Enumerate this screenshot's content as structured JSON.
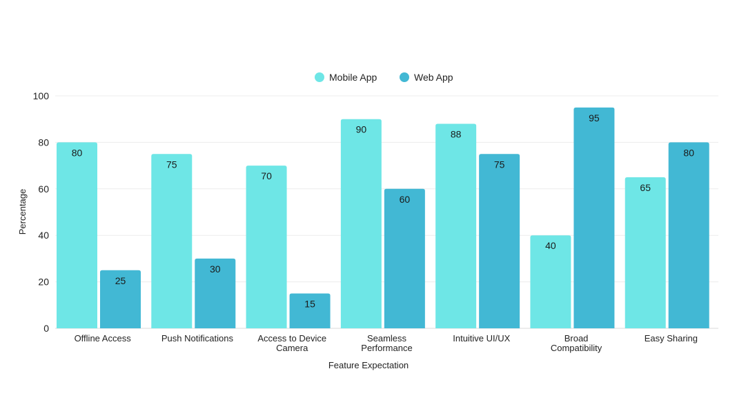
{
  "chart_data": {
    "type": "bar",
    "categories": [
      [
        "Offline Access"
      ],
      [
        "Push Notifications"
      ],
      [
        "Access to Device",
        "Camera"
      ],
      [
        "Seamless",
        "Performance"
      ],
      [
        "Intuitive UI/UX"
      ],
      [
        "Broad",
        "Compatibility"
      ],
      [
        "Easy Sharing"
      ]
    ],
    "series": [
      {
        "name": "Mobile App",
        "values": [
          80,
          75,
          70,
          90,
          88,
          40,
          65
        ],
        "color": "#6ee6e6"
      },
      {
        "name": "Web App",
        "values": [
          25,
          30,
          15,
          60,
          75,
          95,
          80
        ],
        "color": "#42b8d4"
      }
    ],
    "xlabel": "Feature Expectation",
    "ylabel": "Percentage",
    "ylim": [
      0,
      100
    ],
    "yticks": [
      0,
      20,
      40,
      60,
      80,
      100
    ],
    "grid": true,
    "legend": "top-center"
  }
}
